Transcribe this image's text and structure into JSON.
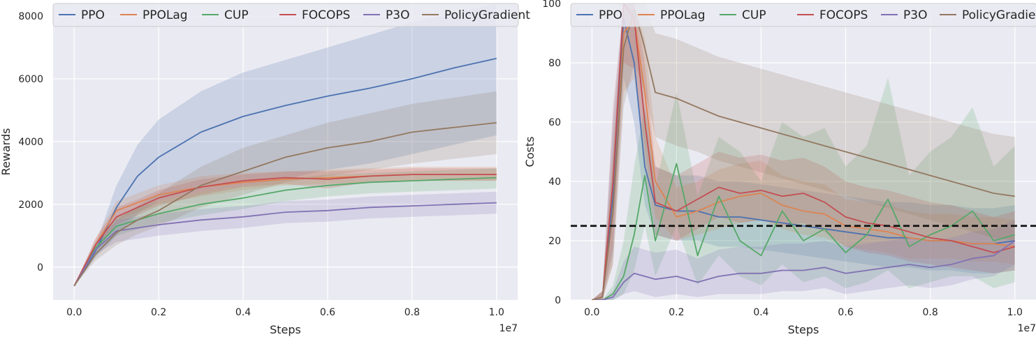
{
  "colors": {
    "PPO": "#4c72b0",
    "PPOLag": "#dd8452",
    "CUP": "#55a868",
    "FOCOPS": "#c44e52",
    "P3O": "#8172b3",
    "PolicyGradient": "#937860",
    "axes_bg": "#eaeaf2",
    "grid": "#ffffff",
    "threshold": "#111111"
  },
  "chart_data": [
    {
      "type": "line",
      "xlabel": "Steps",
      "ylabel": "Rewards",
      "x_offset_label": "1e7",
      "xlim": [
        -0.05,
        1.05
      ],
      "ylim": [
        -1050,
        8400
      ],
      "xticks": [
        0.0,
        0.2,
        0.4,
        0.6,
        0.8,
        1.0
      ],
      "xtick_labels": [
        "0.0",
        "0.2",
        "0.4",
        "0.6",
        "0.8",
        "1.0"
      ],
      "yticks": [
        0,
        2000,
        4000,
        6000,
        8000
      ],
      "ytick_labels": [
        "0",
        "2000",
        "4000",
        "6000",
        "8000"
      ],
      "legend": {
        "placement": "top",
        "entries": [
          "PPO",
          "PPOLag",
          "CUP",
          "FOCOPS",
          "P3O",
          "PolicyGradient"
        ]
      },
      "x": [
        0.0,
        0.05,
        0.1,
        0.15,
        0.2,
        0.3,
        0.4,
        0.5,
        0.6,
        0.7,
        0.8,
        0.9,
        1.0
      ],
      "series": [
        {
          "name": "PPO",
          "values": [
            -600,
            500,
            1900,
            2900,
            3500,
            4300,
            4800,
            5150,
            5450,
            5700,
            6000,
            6350,
            6650
          ],
          "lower": [
            -600,
            300,
            1000,
            1700,
            2100,
            2400,
            2600,
            2800,
            3100,
            3300,
            3600,
            3900,
            4200
          ],
          "upper": [
            -600,
            700,
            2600,
            3900,
            4700,
            5600,
            6200,
            6600,
            7000,
            7400,
            7800,
            8100,
            8400
          ]
        },
        {
          "name": "PPOLag",
          "values": [
            -600,
            700,
            1800,
            2050,
            2300,
            2550,
            2700,
            2800,
            2850,
            2900,
            2950,
            2950,
            2950
          ],
          "lower": [
            -600,
            500,
            1500,
            1750,
            2000,
            2250,
            2450,
            2600,
            2650,
            2700,
            2750,
            2750,
            2750
          ],
          "upper": [
            -600,
            900,
            2100,
            2350,
            2600,
            2900,
            3000,
            3050,
            3100,
            3150,
            3200,
            3200,
            3200
          ]
        },
        {
          "name": "CUP",
          "values": [
            -600,
            600,
            1300,
            1500,
            1700,
            2000,
            2200,
            2450,
            2600,
            2700,
            2750,
            2800,
            2850
          ],
          "lower": [
            -600,
            400,
            1000,
            1200,
            1400,
            1650,
            1850,
            2100,
            2250,
            2350,
            2400,
            2450,
            2500
          ],
          "upper": [
            -600,
            800,
            1600,
            1900,
            2100,
            2400,
            2600,
            2800,
            2950,
            3000,
            3050,
            3100,
            3150
          ]
        },
        {
          "name": "FOCOPS",
          "values": [
            -600,
            700,
            1600,
            1900,
            2200,
            2550,
            2750,
            2850,
            2800,
            2900,
            2950,
            2950,
            2950
          ],
          "lower": [
            -600,
            500,
            1350,
            1650,
            1950,
            2300,
            2550,
            2650,
            2500,
            2700,
            2750,
            2750,
            2750
          ],
          "upper": [
            -600,
            900,
            1900,
            2150,
            2450,
            2800,
            2950,
            3050,
            3050,
            3100,
            3150,
            3150,
            3150
          ]
        },
        {
          "name": "P3O",
          "values": [
            -600,
            550,
            1150,
            1250,
            1350,
            1500,
            1600,
            1750,
            1800,
            1900,
            1950,
            2000,
            2050
          ],
          "lower": [
            -600,
            400,
            800,
            900,
            1000,
            1150,
            1250,
            1400,
            1450,
            1550,
            1600,
            1650,
            1700
          ],
          "upper": [
            -600,
            700,
            1500,
            1600,
            1700,
            1850,
            1950,
            2100,
            2150,
            2250,
            2300,
            2350,
            2400
          ]
        },
        {
          "name": "PolicyGradient",
          "values": [
            -600,
            400,
            1100,
            1500,
            1800,
            2600,
            3050,
            3500,
            3800,
            4000,
            4300,
            4450,
            4600
          ],
          "lower": [
            -600,
            200,
            700,
            1050,
            1300,
            1900,
            2300,
            2700,
            2900,
            3100,
            3300,
            3450,
            3600
          ],
          "upper": [
            -600,
            600,
            1500,
            1950,
            2350,
            3200,
            3800,
            4200,
            4600,
            4900,
            5200,
            5400,
            5600
          ]
        }
      ]
    },
    {
      "type": "line",
      "xlabel": "Steps",
      "ylabel": "Costs",
      "x_offset_label": "1e7",
      "xlim": [
        -0.05,
        1.05
      ],
      "ylim": [
        0,
        100
      ],
      "xticks": [
        0.0,
        0.2,
        0.4,
        0.6,
        0.8,
        1.0
      ],
      "xtick_labels": [
        "0.0",
        "0.2",
        "0.4",
        "0.6",
        "0.8",
        "1.0"
      ],
      "yticks": [
        0,
        20,
        40,
        60,
        80,
        100
      ],
      "ytick_labels": [
        "0",
        "20",
        "40",
        "60",
        "80",
        "100"
      ],
      "threshold": 25,
      "legend": {
        "placement": "top",
        "entries": [
          "PPO",
          "PPOLag",
          "CUP",
          "FOCOPS",
          "P3O",
          "PolicyGradient"
        ]
      },
      "x": [
        0.0,
        0.025,
        0.05,
        0.075,
        0.1,
        0.125,
        0.15,
        0.2,
        0.25,
        0.3,
        0.35,
        0.4,
        0.45,
        0.5,
        0.55,
        0.6,
        0.65,
        0.7,
        0.75,
        0.8,
        0.85,
        0.9,
        0.95,
        1.0
      ],
      "series": [
        {
          "name": "PPO",
          "values": [
            0,
            1,
            35,
            95,
            80,
            45,
            32,
            30,
            30,
            28,
            28,
            27,
            26,
            25,
            24,
            23,
            22,
            21,
            21,
            20,
            20,
            19,
            19,
            20
          ],
          "lower": [
            0,
            0,
            15,
            75,
            60,
            32,
            22,
            20,
            20,
            18,
            18,
            17,
            16,
            15,
            14,
            13,
            12,
            11,
            11,
            10,
            10,
            9,
            9,
            10
          ],
          "upper": [
            0,
            3,
            60,
            100,
            100,
            65,
            45,
            42,
            42,
            40,
            40,
            39,
            38,
            37,
            36,
            35,
            34,
            33,
            33,
            32,
            32,
            31,
            31,
            32
          ]
        },
        {
          "name": "PPOLag",
          "values": [
            0,
            1,
            30,
            90,
            95,
            70,
            40,
            28,
            30,
            33,
            35,
            36,
            32,
            30,
            29,
            25,
            24,
            23,
            21,
            20,
            20,
            19,
            19,
            18
          ],
          "lower": [
            0,
            0,
            12,
            70,
            75,
            52,
            28,
            20,
            22,
            24,
            26,
            27,
            24,
            22,
            21,
            18,
            17,
            16,
            14,
            14,
            14,
            13,
            13,
            12
          ],
          "upper": [
            0,
            3,
            50,
            100,
            100,
            88,
            55,
            38,
            40,
            44,
            46,
            47,
            42,
            40,
            39,
            34,
            33,
            32,
            30,
            29,
            29,
            28,
            28,
            27
          ]
        },
        {
          "name": "CUP",
          "values": [
            0,
            0,
            2,
            8,
            22,
            42,
            20,
            46,
            15,
            35,
            20,
            15,
            30,
            20,
            24,
            16,
            22,
            34,
            18,
            22,
            25,
            30,
            20,
            22
          ],
          "lower": [
            0,
            0,
            0,
            2,
            10,
            25,
            8,
            25,
            5,
            15,
            8,
            5,
            12,
            6,
            8,
            4,
            6,
            10,
            4,
            6,
            8,
            8,
            4,
            6
          ],
          "upper": [
            0,
            0,
            5,
            20,
            45,
            65,
            38,
            70,
            35,
            55,
            50,
            40,
            60,
            55,
            58,
            45,
            52,
            75,
            42,
            50,
            55,
            65,
            45,
            52
          ]
        },
        {
          "name": "FOCOPS",
          "values": [
            0,
            1,
            40,
            100,
            95,
            60,
            33,
            30,
            34,
            38,
            36,
            37,
            35,
            36,
            33,
            28,
            26,
            25,
            23,
            21,
            20,
            18,
            16,
            18
          ],
          "lower": [
            0,
            0,
            18,
            80,
            78,
            45,
            22,
            20,
            24,
            28,
            26,
            27,
            25,
            26,
            23,
            18,
            16,
            15,
            13,
            12,
            11,
            10,
            9,
            10
          ],
          "upper": [
            0,
            3,
            65,
            100,
            100,
            80,
            45,
            42,
            46,
            50,
            48,
            49,
            47,
            48,
            45,
            40,
            38,
            37,
            35,
            33,
            32,
            30,
            28,
            30
          ]
        },
        {
          "name": "P3O",
          "values": [
            0,
            0,
            1,
            6,
            9,
            8,
            7,
            8,
            6,
            8,
            9,
            9,
            10,
            10,
            11,
            9,
            10,
            11,
            12,
            11,
            12,
            14,
            15,
            20
          ],
          "lower": [
            0,
            0,
            0,
            2,
            3,
            2,
            1,
            2,
            1,
            2,
            2,
            2,
            3,
            3,
            4,
            2,
            3,
            4,
            5,
            4,
            5,
            7,
            8,
            12
          ],
          "upper": [
            0,
            0,
            3,
            13,
            18,
            17,
            16,
            17,
            14,
            17,
            18,
            18,
            19,
            19,
            20,
            18,
            19,
            20,
            21,
            20,
            21,
            23,
            24,
            27
          ]
        },
        {
          "name": "PolicyGradient",
          "values": [
            0,
            1,
            30,
            85,
            98,
            85,
            70,
            68,
            65,
            62,
            60,
            58,
            56,
            54,
            52,
            50,
            48,
            46,
            44,
            42,
            40,
            38,
            36,
            35
          ],
          "lower": [
            0,
            0,
            12,
            65,
            80,
            70,
            55,
            52,
            50,
            47,
            45,
            43,
            41,
            39,
            37,
            35,
            33,
            31,
            29,
            27,
            25,
            23,
            21,
            20
          ],
          "upper": [
            0,
            3,
            50,
            100,
            100,
            100,
            90,
            88,
            85,
            82,
            80,
            78,
            76,
            74,
            72,
            70,
            68,
            66,
            64,
            62,
            60,
            58,
            56,
            55
          ]
        }
      ]
    }
  ]
}
